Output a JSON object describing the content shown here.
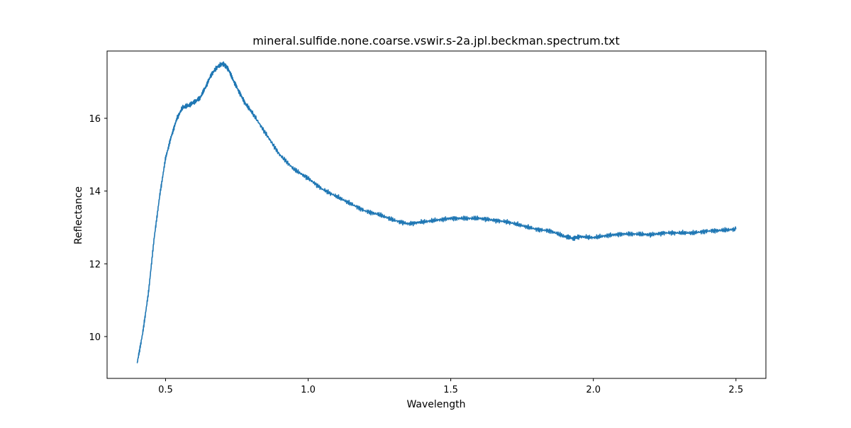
{
  "chart_data": {
    "type": "line",
    "title": "mineral.sulfide.none.coarse.vswir.s-2a.jpl.beckman.spectrum.txt",
    "xlabel": "Wavelength",
    "ylabel": "Reflectance",
    "xlim": [
      0.295,
      2.605
    ],
    "ylim": [
      8.85,
      17.85
    ],
    "xticks": [
      0.5,
      1.0,
      1.5,
      2.0,
      2.5
    ],
    "xtick_labels": [
      "0.5",
      "1.0",
      "1.5",
      "2.0",
      "2.5"
    ],
    "yticks": [
      10,
      12,
      14,
      16
    ],
    "ytick_labels": [
      "10",
      "12",
      "14",
      "16"
    ],
    "grid": false,
    "legend": "none",
    "line_color": "#1f77b4",
    "series": [
      {
        "x": [
          0.4,
          0.42,
          0.44,
          0.46,
          0.48,
          0.5,
          0.52,
          0.54,
          0.56,
          0.58,
          0.6,
          0.62,
          0.64,
          0.66,
          0.68,
          0.7,
          0.71,
          0.72,
          0.74,
          0.76,
          0.78,
          0.8,
          0.85,
          0.9,
          0.95,
          1.0,
          1.05,
          1.1,
          1.15,
          1.2,
          1.25,
          1.3,
          1.35,
          1.4,
          1.45,
          1.5,
          1.55,
          1.6,
          1.65,
          1.7,
          1.75,
          1.8,
          1.85,
          1.9,
          1.93,
          1.95,
          2.0,
          2.05,
          2.1,
          2.15,
          2.2,
          2.25,
          2.3,
          2.35,
          2.4,
          2.45,
          2.5
        ],
        "values": [
          9.25,
          10.1,
          11.2,
          12.7,
          13.9,
          14.9,
          15.5,
          16.0,
          16.3,
          16.35,
          16.45,
          16.55,
          16.85,
          17.2,
          17.4,
          17.5,
          17.45,
          17.35,
          17.0,
          16.7,
          16.4,
          16.2,
          15.6,
          15.0,
          14.6,
          14.35,
          14.05,
          13.85,
          13.65,
          13.45,
          13.35,
          13.2,
          13.1,
          13.15,
          13.2,
          13.25,
          13.25,
          13.25,
          13.2,
          13.15,
          13.05,
          12.95,
          12.9,
          12.75,
          12.7,
          12.75,
          12.72,
          12.78,
          12.82,
          12.82,
          12.8,
          12.85,
          12.85,
          12.85,
          12.9,
          12.92,
          12.95
        ]
      }
    ]
  }
}
